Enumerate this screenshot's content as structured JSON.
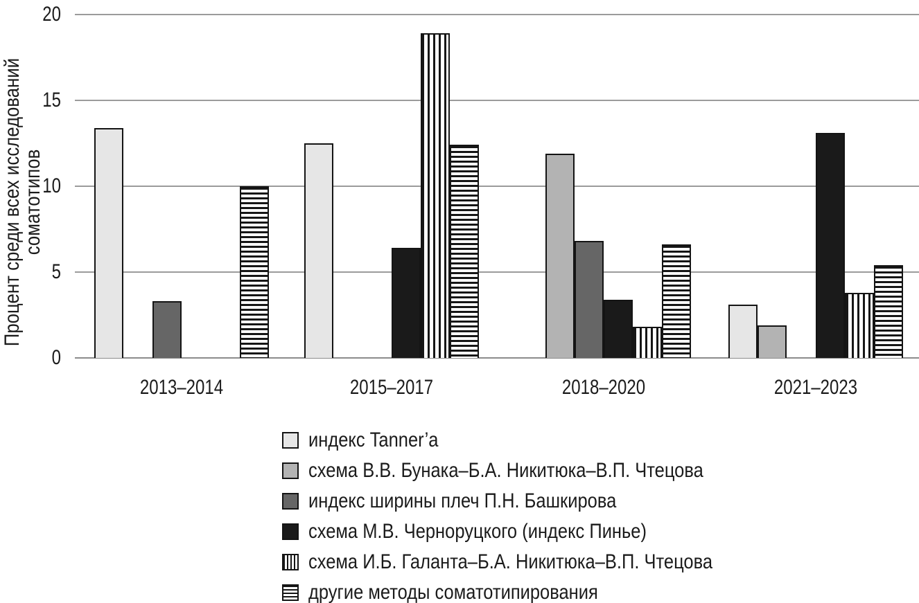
{
  "chart_data": {
    "type": "bar",
    "title": "",
    "xlabel": "",
    "ylabel": "Процент среди всех исследований соматотипов",
    "ylim": [
      0,
      20
    ],
    "yticks": [
      0,
      5,
      10,
      15,
      20
    ],
    "grid": true,
    "legend_position": "bottom-left",
    "categories": [
      "2013–2014",
      "2015–2017",
      "2018–2020",
      "2021–2023"
    ],
    "series": [
      {
        "name": "индекс Tanner’a",
        "fill": "solid",
        "color": "#e6e6e6",
        "values": [
          13.4,
          12.5,
          0,
          3.1
        ]
      },
      {
        "name": "схема В.В. Бунака–Б.А. Никитюка–В.П. Чтецова",
        "fill": "solid",
        "color": "#b3b3b3",
        "values": [
          0,
          0,
          11.9,
          1.9
        ]
      },
      {
        "name": "индекс ширины плеч П.Н. Башкирова",
        "fill": "solid",
        "color": "#666666",
        "values": [
          3.3,
          0,
          6.8,
          0
        ]
      },
      {
        "name": "схема М.В. Черноруцкого (индекс Пинье)",
        "fill": "solid",
        "color": "#1a1a1a",
        "values": [
          0,
          6.4,
          3.4,
          13.1
        ]
      },
      {
        "name": "схема И.Б. Галанта–Б.А. Никитюка–В.П. Чтецова",
        "fill": "vertical-stripes",
        "color": "#1a1a1a",
        "values": [
          0,
          18.9,
          1.8,
          3.8
        ]
      },
      {
        "name": "другие методы соматотипирования",
        "fill": "horizontal-stripes",
        "color": "#1a1a1a",
        "values": [
          10.0,
          12.4,
          6.6,
          5.4
        ]
      }
    ],
    "colors": {
      "grid": "#9b9b9b",
      "bar_border": "#141414",
      "text": "#1b1b1b"
    }
  }
}
